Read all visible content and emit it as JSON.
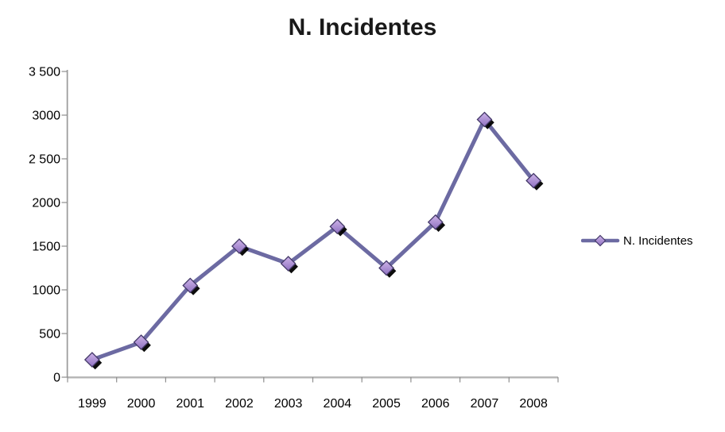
{
  "title": "N. Incidentes",
  "legend": {
    "label": "N. Incidentes"
  },
  "colors": {
    "background": "#FFFFFF",
    "line": "#6C6AA2",
    "line_highlight": "#8987B8",
    "marker_fill_top": "#CDB3E8",
    "marker_fill_bottom": "#8F71C1",
    "marker_border": "#443969",
    "marker_shadow": "#000000",
    "axis": "#8E8E8E",
    "axis_highlight": "#D8D8D8",
    "tick_text": "#000000",
    "title_text": "#191919"
  },
  "chart_data": {
    "type": "line",
    "title": "N. Incidentes",
    "categories": [
      "1999",
      "2000",
      "2001",
      "2002",
      "2003",
      "2004",
      "2005",
      "2006",
      "2007",
      "2008"
    ],
    "series": [
      {
        "name": "N. Incidentes",
        "values": [
          200,
          400,
          1050,
          1500,
          1300,
          1725,
          1250,
          1775,
          2950,
          2250
        ]
      }
    ],
    "xlabel": "",
    "ylabel": "",
    "ylim": [
      0,
      3500
    ],
    "ytick_interval": 500,
    "ytick_labels": [
      "0",
      "500",
      "1000",
      "1500",
      "2000",
      "2 500",
      "3000",
      "3 500"
    ],
    "grid": false,
    "legend_position": "right",
    "marker": "diamond"
  }
}
